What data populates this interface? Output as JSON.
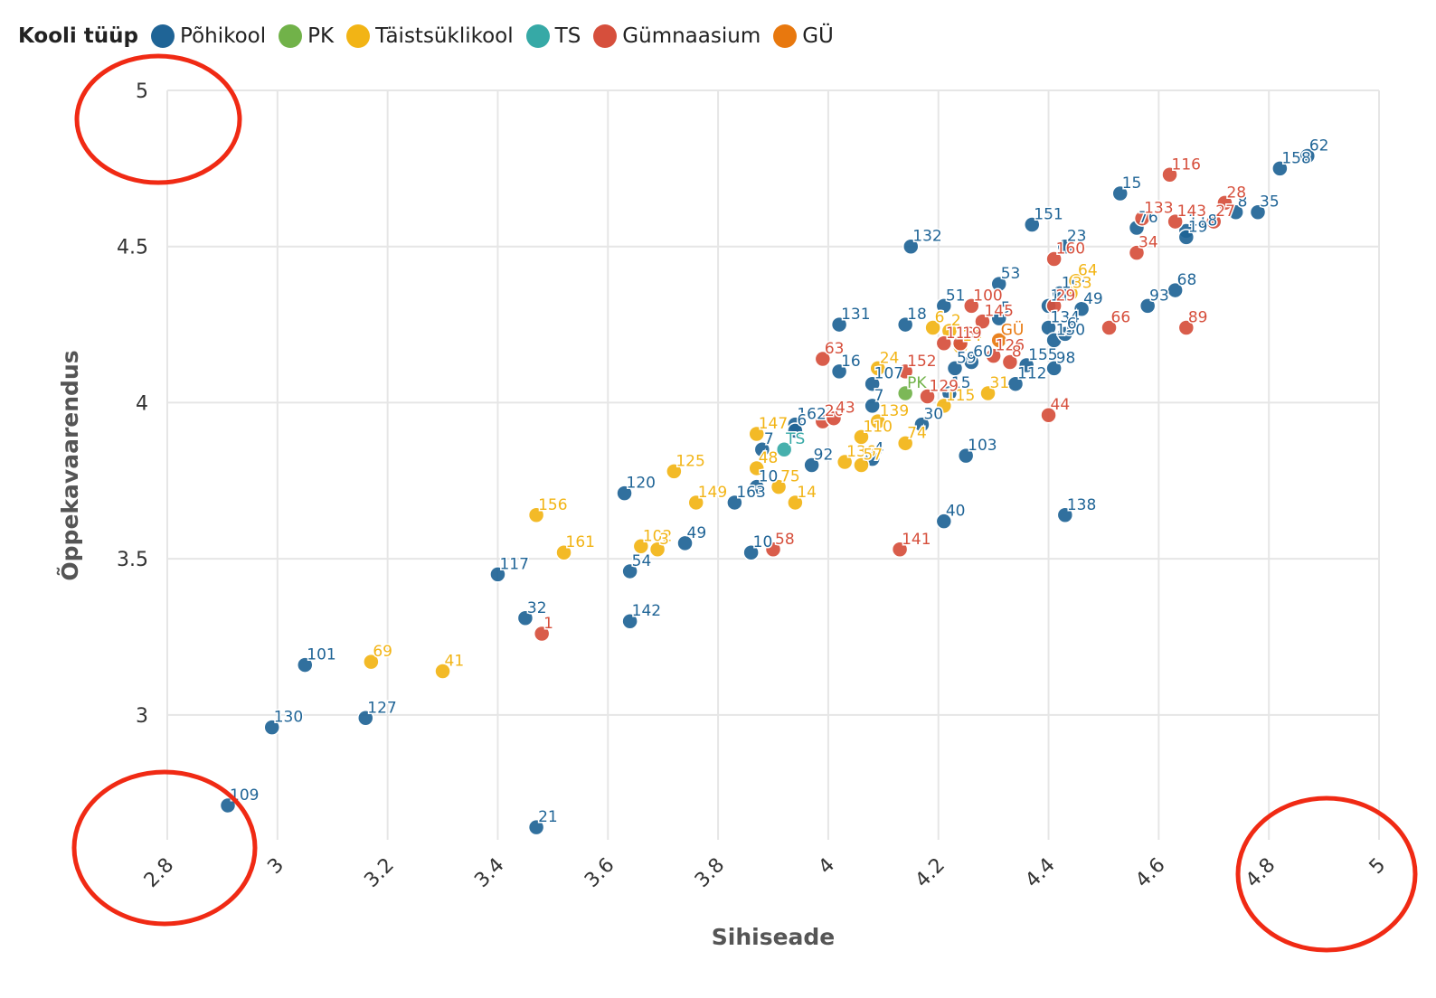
{
  "chart_data": {
    "type": "scatter",
    "title": "",
    "xlabel": "Sihiseade",
    "ylabel": "Õppekavaarendus",
    "xlim": [
      2.8,
      5
    ],
    "ylim": [
      2.6,
      5
    ],
    "x_ticks": [
      "2.8",
      "3",
      "3.2",
      "3.4",
      "3.6",
      "3.8",
      "4",
      "4.2",
      "4.4",
      "4.6",
      "4.8",
      "5"
    ],
    "y_ticks": [
      "3",
      "3.5",
      "4",
      "4.5",
      "5"
    ],
    "grid": true,
    "legend_title": "Kooli tüüp",
    "legend_position": "top-left",
    "series": [
      {
        "name": "Põhikool",
        "color": "#1f6496",
        "points": [
          {
            "label": "62",
            "x": 4.87,
            "y": 4.79
          },
          {
            "label": "158",
            "x": 4.82,
            "y": 4.75
          },
          {
            "label": "35",
            "x": 4.78,
            "y": 4.61
          },
          {
            "label": "8",
            "x": 4.74,
            "y": 4.61
          },
          {
            "label": "15",
            "x": 4.53,
            "y": 4.67
          },
          {
            "label": "76",
            "x": 4.56,
            "y": 4.56
          },
          {
            "label": "118",
            "x": 4.65,
            "y": 4.55
          },
          {
            "label": "19",
            "x": 4.65,
            "y": 4.53
          },
          {
            "label": "151",
            "x": 4.37,
            "y": 4.57
          },
          {
            "label": "132",
            "x": 4.15,
            "y": 4.5
          },
          {
            "label": "23",
            "x": 4.43,
            "y": 4.5
          },
          {
            "label": "53",
            "x": 4.31,
            "y": 4.38
          },
          {
            "label": "105",
            "x": 4.42,
            "y": 4.35
          },
          {
            "label": "68",
            "x": 4.63,
            "y": 4.36
          },
          {
            "label": "93",
            "x": 4.58,
            "y": 4.31
          },
          {
            "label": "51",
            "x": 4.21,
            "y": 4.31
          },
          {
            "label": "11",
            "x": 4.4,
            "y": 4.31
          },
          {
            "label": "49",
            "x": 4.46,
            "y": 4.3
          },
          {
            "label": "134",
            "x": 4.4,
            "y": 4.24
          },
          {
            "label": "5",
            "x": 4.31,
            "y": 4.27
          },
          {
            "label": "131",
            "x": 4.02,
            "y": 4.25
          },
          {
            "label": "18",
            "x": 4.14,
            "y": 4.25
          },
          {
            "label": "150",
            "x": 4.41,
            "y": 4.2
          },
          {
            "label": "6",
            "x": 4.43,
            "y": 4.22
          },
          {
            "label": "98",
            "x": 4.41,
            "y": 4.11
          },
          {
            "label": "155",
            "x": 4.36,
            "y": 4.12
          },
          {
            "label": "59",
            "x": 4.23,
            "y": 4.11
          },
          {
            "label": "60",
            "x": 4.26,
            "y": 4.13
          },
          {
            "label": "112",
            "x": 4.34,
            "y": 4.06
          },
          {
            "label": "16",
            "x": 4.02,
            "y": 4.1
          },
          {
            "label": "107",
            "x": 4.08,
            "y": 4.06
          },
          {
            "label": "15",
            "x": 4.22,
            "y": 4.03
          },
          {
            "label": "7",
            "x": 4.08,
            "y": 3.99
          },
          {
            "label": "30",
            "x": 4.17,
            "y": 3.93
          },
          {
            "label": "162",
            "x": 3.94,
            "y": 3.93
          },
          {
            "label": "6",
            "x": 3.94,
            "y": 3.91
          },
          {
            "label": "7",
            "x": 3.88,
            "y": 3.85
          },
          {
            "label": "92",
            "x": 3.97,
            "y": 3.8
          },
          {
            "label": "4",
            "x": 4.08,
            "y": 3.82
          },
          {
            "label": "103",
            "x": 4.25,
            "y": 3.83
          },
          {
            "label": "120",
            "x": 3.63,
            "y": 3.71
          },
          {
            "label": "163",
            "x": 3.83,
            "y": 3.68
          },
          {
            "label": "10",
            "x": 3.87,
            "y": 3.73
          },
          {
            "label": "40",
            "x": 4.21,
            "y": 3.62
          },
          {
            "label": "138",
            "x": 4.43,
            "y": 3.64
          },
          {
            "label": "49",
            "x": 3.74,
            "y": 3.55
          },
          {
            "label": "10",
            "x": 3.86,
            "y": 3.52
          },
          {
            "label": "117",
            "x": 3.4,
            "y": 3.45
          },
          {
            "label": "54",
            "x": 3.64,
            "y": 3.46
          },
          {
            "label": "32",
            "x": 3.45,
            "y": 3.31
          },
          {
            "label": "142",
            "x": 3.64,
            "y": 3.3
          },
          {
            "label": "101",
            "x": 3.05,
            "y": 3.16
          },
          {
            "label": "130",
            "x": 2.99,
            "y": 2.96
          },
          {
            "label": "127",
            "x": 3.16,
            "y": 2.99
          },
          {
            "label": "109",
            "x": 2.91,
            "y": 2.71
          },
          {
            "label": "21",
            "x": 3.47,
            "y": 2.64
          }
        ]
      },
      {
        "name": "PK",
        "color": "#71b249",
        "points": [
          {
            "label": "PK",
            "x": 4.14,
            "y": 4.03
          }
        ]
      },
      {
        "name": "Täistsüklikool",
        "color": "#f2b415",
        "points": [
          {
            "label": "64",
            "x": 4.45,
            "y": 4.39
          },
          {
            "label": "33",
            "x": 4.44,
            "y": 4.35
          },
          {
            "label": "6",
            "x": 4.19,
            "y": 4.24
          },
          {
            "label": "2",
            "x": 4.22,
            "y": 4.23
          },
          {
            "label": "14",
            "x": 4.24,
            "y": 4.18
          },
          {
            "label": "24",
            "x": 4.09,
            "y": 4.11
          },
          {
            "label": "115",
            "x": 4.21,
            "y": 3.99
          },
          {
            "label": "31",
            "x": 4.29,
            "y": 4.03
          },
          {
            "label": "139",
            "x": 4.09,
            "y": 3.94
          },
          {
            "label": "110",
            "x": 4.06,
            "y": 3.89
          },
          {
            "label": "74",
            "x": 4.14,
            "y": 3.87
          },
          {
            "label": "147",
            "x": 3.87,
            "y": 3.9
          },
          {
            "label": "136",
            "x": 4.03,
            "y": 3.81
          },
          {
            "label": "57",
            "x": 4.06,
            "y": 3.8
          },
          {
            "label": "48",
            "x": 3.87,
            "y": 3.79
          },
          {
            "label": "75",
            "x": 3.91,
            "y": 3.73
          },
          {
            "label": "14",
            "x": 3.94,
            "y": 3.68
          },
          {
            "label": "125",
            "x": 3.72,
            "y": 3.78
          },
          {
            "label": "149",
            "x": 3.76,
            "y": 3.68
          },
          {
            "label": "156",
            "x": 3.47,
            "y": 3.64
          },
          {
            "label": "161",
            "x": 3.52,
            "y": 3.52
          },
          {
            "label": "102",
            "x": 3.66,
            "y": 3.54
          },
          {
            "label": "3",
            "x": 3.69,
            "y": 3.53
          },
          {
            "label": "69",
            "x": 3.17,
            "y": 3.17
          },
          {
            "label": "41",
            "x": 3.3,
            "y": 3.14
          }
        ]
      },
      {
        "name": "TS",
        "color": "#36a9a6",
        "points": [
          {
            "label": "TS",
            "x": 3.92,
            "y": 3.85
          }
        ]
      },
      {
        "name": "Gümnaasium",
        "color": "#d64f3c",
        "points": [
          {
            "label": "116",
            "x": 4.62,
            "y": 4.73
          },
          {
            "label": "28",
            "x": 4.72,
            "y": 4.64
          },
          {
            "label": "27",
            "x": 4.7,
            "y": 4.58
          },
          {
            "label": "133",
            "x": 4.57,
            "y": 4.59
          },
          {
            "label": "143",
            "x": 4.63,
            "y": 4.58
          },
          {
            "label": "34",
            "x": 4.56,
            "y": 4.48
          },
          {
            "label": "160",
            "x": 4.41,
            "y": 4.46
          },
          {
            "label": "29",
            "x": 4.41,
            "y": 4.31
          },
          {
            "label": "66",
            "x": 4.51,
            "y": 4.24
          },
          {
            "label": "89",
            "x": 4.65,
            "y": 4.24
          },
          {
            "label": "100",
            "x": 4.26,
            "y": 4.31
          },
          {
            "label": "145",
            "x": 4.28,
            "y": 4.26
          },
          {
            "label": "113",
            "x": 4.21,
            "y": 4.19
          },
          {
            "label": "19",
            "x": 4.24,
            "y": 4.19
          },
          {
            "label": "126",
            "x": 4.3,
            "y": 4.15
          },
          {
            "label": "8",
            "x": 4.33,
            "y": 4.13
          },
          {
            "label": "63",
            "x": 3.99,
            "y": 4.14
          },
          {
            "label": "152",
            "x": 4.14,
            "y": 4.1
          },
          {
            "label": "129",
            "x": 4.18,
            "y": 4.02
          },
          {
            "label": "20",
            "x": 3.99,
            "y": 3.94
          },
          {
            "label": "43",
            "x": 4.01,
            "y": 3.95
          },
          {
            "label": "44",
            "x": 4.4,
            "y": 3.96
          },
          {
            "label": "58",
            "x": 3.9,
            "y": 3.53
          },
          {
            "label": "141",
            "x": 4.13,
            "y": 3.53
          },
          {
            "label": "1",
            "x": 3.48,
            "y": 3.26
          }
        ]
      },
      {
        "name": "GÜ",
        "color": "#e8780e",
        "points": [
          {
            "label": "GÜ",
            "x": 4.31,
            "y": 4.2
          }
        ]
      }
    ]
  }
}
